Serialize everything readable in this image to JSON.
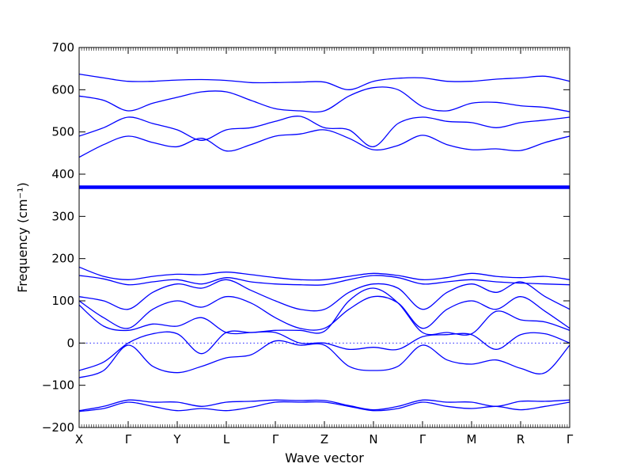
{
  "chart_data": {
    "type": "line",
    "title": "",
    "xlabel": "Wave vector",
    "ylabel": "Frequency (cm⁻¹)",
    "ylim": [
      -200,
      700
    ],
    "yticks": [
      -200,
      -100,
      0,
      100,
      200,
      300,
      400,
      500,
      600,
      700
    ],
    "ytick_labels": [
      "−200",
      "−100",
      "0",
      "100",
      "200",
      "300",
      "400",
      "500",
      "600",
      "700"
    ],
    "xtick_labels": [
      "X",
      "Γ",
      "Y",
      "L",
      "Γ",
      "Z",
      "N",
      "Γ",
      "M",
      "R",
      "Γ"
    ],
    "line_color": "#0000ff",
    "zero_line": true,
    "high_points": [
      "X",
      "Γ",
      "Y",
      "L",
      "Γ",
      "Z",
      "N",
      "Γ",
      "M",
      "R",
      "Γ"
    ],
    "series": [
      {
        "x": [
          0,
          0.5,
          1,
          1.5,
          2,
          2.5,
          3,
          3.5,
          4,
          4.5,
          5,
          5.5,
          6,
          6.5,
          7,
          7.5,
          8,
          8.5,
          9,
          9.5,
          10
        ],
        "values": [
          637,
          628,
          620,
          620,
          623,
          624,
          622,
          617,
          617,
          618,
          618,
          600,
          620,
          627,
          628,
          620,
          620,
          625,
          628,
          632,
          620
        ]
      },
      {
        "x": [
          0,
          0.5,
          1,
          1.5,
          2,
          2.5,
          3,
          3.5,
          4,
          4.5,
          5,
          5.5,
          6,
          6.5,
          7,
          7.5,
          8,
          8.5,
          9,
          9.5,
          10
        ],
        "values": [
          585,
          575,
          550,
          568,
          582,
          595,
          595,
          575,
          555,
          550,
          550,
          585,
          605,
          600,
          560,
          550,
          568,
          570,
          562,
          558,
          548
        ]
      },
      {
        "x": [
          0,
          0.5,
          1,
          1.5,
          2,
          2.5,
          3,
          3.5,
          4,
          4.5,
          5,
          5.5,
          6,
          6.5,
          7,
          7.5,
          8,
          8.5,
          9,
          9.5,
          10
        ],
        "values": [
          490,
          510,
          535,
          520,
          505,
          480,
          505,
          510,
          525,
          537,
          510,
          505,
          465,
          520,
          535,
          525,
          522,
          510,
          522,
          528,
          535
        ]
      },
      {
        "x": [
          0,
          0.5,
          1,
          1.5,
          2,
          2.5,
          3,
          3.5,
          4,
          4.5,
          5,
          5.5,
          6,
          6.5,
          7,
          7.5,
          8,
          8.5,
          9,
          9.5,
          10
        ],
        "values": [
          440,
          470,
          490,
          475,
          465,
          485,
          455,
          470,
          490,
          495,
          505,
          485,
          458,
          468,
          492,
          470,
          458,
          460,
          456,
          475,
          490
        ]
      },
      {
        "x": [
          0,
          10
        ],
        "values": [
          372,
          372
        ]
      },
      {
        "x": [
          0,
          10
        ],
        "values": [
          370,
          370
        ]
      },
      {
        "x": [
          0,
          10
        ],
        "values": [
          368,
          368
        ]
      },
      {
        "x": [
          0,
          10
        ],
        "values": [
          366,
          366
        ]
      },
      {
        "x": [
          0,
          0.5,
          1,
          1.5,
          2,
          2.5,
          3,
          3.5,
          4,
          4.5,
          5,
          5.5,
          6,
          6.5,
          7,
          7.5,
          8,
          8.5,
          9,
          9.5,
          10
        ],
        "values": [
          180,
          158,
          150,
          158,
          163,
          162,
          168,
          162,
          155,
          150,
          150,
          158,
          165,
          160,
          150,
          155,
          165,
          158,
          155,
          158,
          150
        ]
      },
      {
        "x": [
          0,
          0.5,
          1,
          1.5,
          2,
          2.5,
          3,
          3.5,
          4,
          4.5,
          5,
          5.5,
          6,
          6.5,
          7,
          7.5,
          8,
          8.5,
          9,
          9.5,
          10
        ],
        "values": [
          160,
          152,
          138,
          145,
          150,
          140,
          155,
          145,
          140,
          138,
          138,
          150,
          160,
          155,
          140,
          145,
          150,
          145,
          142,
          140,
          138
        ]
      },
      {
        "x": [
          0,
          0.5,
          1,
          1.5,
          2,
          2.5,
          3,
          3.5,
          4,
          4.5,
          5,
          5.5,
          6,
          6.5,
          7,
          7.5,
          8,
          8.5,
          9,
          9.5,
          10
        ],
        "values": [
          110,
          100,
          80,
          120,
          140,
          130,
          150,
          125,
          100,
          80,
          80,
          120,
          140,
          130,
          80,
          120,
          140,
          120,
          145,
          110,
          80
        ]
      },
      {
        "x": [
          0,
          0.5,
          1,
          1.5,
          2,
          2.5,
          3,
          3.5,
          4,
          4.5,
          5,
          5.5,
          6,
          6.5,
          7,
          7.5,
          8,
          8.5,
          9,
          9.5,
          10
        ],
        "values": [
          100,
          60,
          35,
          80,
          100,
          85,
          110,
          95,
          60,
          35,
          35,
          80,
          110,
          95,
          35,
          80,
          100,
          80,
          110,
          75,
          35
        ]
      },
      {
        "x": [
          0,
          0.5,
          1,
          1.5,
          2,
          2.5,
          3,
          3.5,
          4,
          4.5,
          5,
          5.5,
          6,
          6.5,
          7,
          7.5,
          8,
          8.5,
          9,
          9.5,
          10
        ],
        "values": [
          90,
          40,
          30,
          45,
          40,
          60,
          25,
          25,
          30,
          30,
          28,
          100,
          130,
          95,
          25,
          25,
          22,
          75,
          55,
          50,
          30
        ]
      },
      {
        "x": [
          0,
          0.5,
          1,
          1.5,
          2,
          2.5,
          3,
          3.5,
          4,
          4.5,
          5,
          5.5,
          6,
          6.5,
          7,
          7.5,
          8,
          8.5,
          9,
          9.5,
          10
        ],
        "values": [
          -65,
          -45,
          0,
          22,
          22,
          -25,
          25,
          25,
          25,
          0,
          0,
          -15,
          -10,
          -15,
          15,
          20,
          20,
          -15,
          20,
          22,
          0
        ]
      },
      {
        "x": [
          0,
          0.5,
          1,
          1.5,
          2,
          2.5,
          3,
          3.5,
          4,
          4.5,
          5,
          5.5,
          6,
          6.5,
          7,
          7.5,
          8,
          8.5,
          9,
          9.5,
          10
        ],
        "values": [
          -82,
          -65,
          -5,
          -55,
          -70,
          -55,
          -35,
          -28,
          5,
          -5,
          -5,
          -55,
          -65,
          -55,
          -5,
          -40,
          -50,
          -40,
          -60,
          -70,
          -5
        ]
      },
      {
        "x": [
          0,
          0.5,
          1,
          1.5,
          2,
          2.5,
          3,
          3.5,
          4,
          4.5,
          5,
          5.5,
          6,
          6.5,
          7,
          7.5,
          8,
          8.5,
          9,
          9.5,
          10
        ],
        "values": [
          -160,
          -150,
          -135,
          -140,
          -140,
          -150,
          -140,
          -138,
          -135,
          -136,
          -136,
          -148,
          -158,
          -150,
          -135,
          -140,
          -140,
          -150,
          -138,
          -138,
          -135
        ]
      },
      {
        "x": [
          0,
          0.5,
          1,
          1.5,
          2,
          2.5,
          3,
          3.5,
          4,
          4.5,
          5,
          5.5,
          6,
          6.5,
          7,
          7.5,
          8,
          8.5,
          9,
          9.5,
          10
        ],
        "values": [
          -162,
          -155,
          -140,
          -150,
          -160,
          -155,
          -160,
          -152,
          -140,
          -140,
          -140,
          -150,
          -160,
          -155,
          -140,
          -150,
          -155,
          -150,
          -158,
          -150,
          -140
        ]
      }
    ]
  }
}
